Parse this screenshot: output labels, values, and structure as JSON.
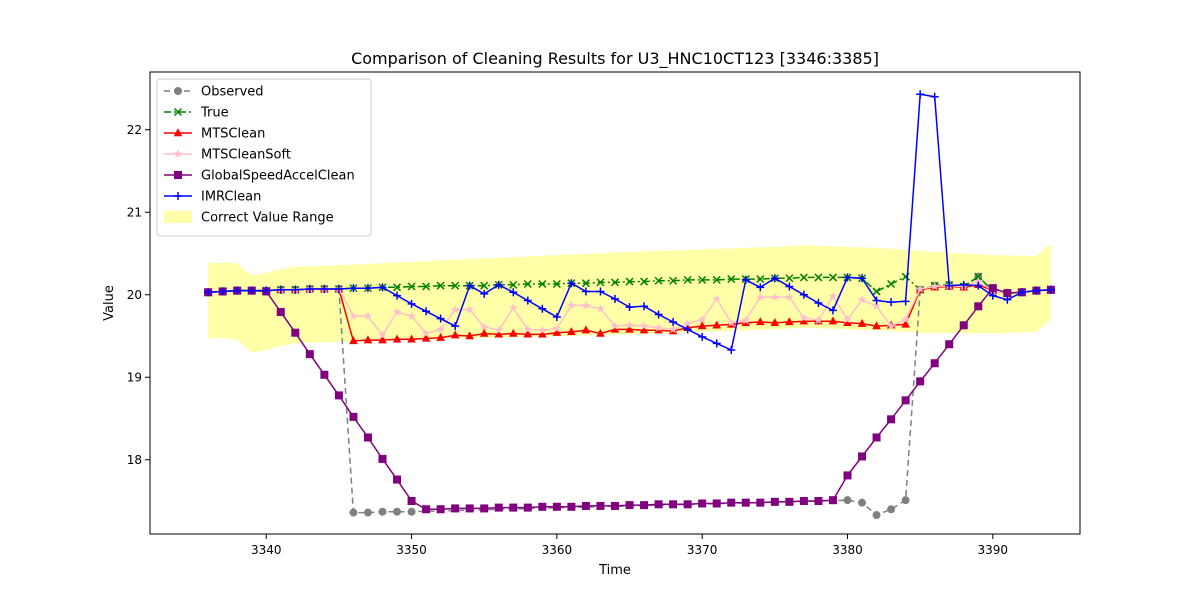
{
  "chart_data": {
    "type": "line",
    "title": "Comparison of Cleaning Results for U3_HNC10CT123 [3346:3385]",
    "xlabel": "Time",
    "ylabel": "Value",
    "xlim": [
      3332,
      3396
    ],
    "ylim": [
      17.1,
      22.7
    ],
    "xticks": [
      3340,
      3350,
      3360,
      3370,
      3380,
      3390
    ],
    "yticks": [
      18,
      19,
      20,
      21,
      22
    ],
    "grid": false,
    "legend_position": "top-left",
    "x": [
      3336,
      3337,
      3338,
      3339,
      3340,
      3341,
      3342,
      3343,
      3344,
      3345,
      3346,
      3347,
      3348,
      3349,
      3350,
      3351,
      3352,
      3353,
      3354,
      3355,
      3356,
      3357,
      3358,
      3359,
      3360,
      3361,
      3362,
      3363,
      3364,
      3365,
      3366,
      3367,
      3368,
      3369,
      3370,
      3371,
      3372,
      3373,
      3374,
      3375,
      3376,
      3377,
      3378,
      3379,
      3380,
      3381,
      3382,
      3383,
      3384,
      3385,
      3386,
      3387,
      3388,
      3389,
      3390,
      3391,
      3392,
      3393,
      3394
    ],
    "band": {
      "name": "Correct Value Range",
      "color": "#ffff99",
      "x": [
        3336,
        3337,
        3338,
        3339,
        3340,
        3341,
        3342,
        3345,
        3350,
        3355,
        3360,
        3365,
        3370,
        3375,
        3377,
        3380,
        3383,
        3385,
        3390,
        3393,
        3394
      ],
      "upper": [
        20.38,
        20.39,
        20.38,
        20.23,
        20.27,
        20.31,
        20.34,
        20.36,
        20.4,
        20.44,
        20.48,
        20.52,
        20.55,
        20.58,
        20.6,
        20.58,
        20.56,
        20.53,
        20.48,
        20.47,
        20.62
      ],
      "lower": [
        19.47,
        19.48,
        19.45,
        19.3,
        19.33,
        19.38,
        19.41,
        19.43,
        19.46,
        19.48,
        19.5,
        19.52,
        19.55,
        19.58,
        19.6,
        19.58,
        19.56,
        19.54,
        19.53,
        19.55,
        19.7
      ]
    },
    "series": [
      {
        "name": "Observed",
        "color": "#808080",
        "marker": "circle",
        "dash": "6,4",
        "values": [
          20.03,
          20.04,
          20.05,
          20.05,
          20.05,
          20.06,
          20.06,
          20.07,
          20.07,
          20.07,
          17.36,
          17.36,
          17.37,
          17.37,
          17.37,
          null,
          null,
          null,
          null,
          null,
          null,
          null,
          null,
          null,
          null,
          null,
          null,
          null,
          null,
          null,
          null,
          null,
          null,
          null,
          null,
          null,
          null,
          null,
          null,
          null,
          null,
          null,
          null,
          null,
          17.51,
          17.48,
          17.33,
          17.4,
          17.51,
          20.06,
          20.11,
          20.12,
          20.1,
          20.22,
          20.05,
          20.02,
          20.03,
          20.05,
          20.06
        ]
      },
      {
        "name": "True",
        "color": "#008000",
        "marker": "x",
        "dash": "7,3,2,3",
        "values": [
          20.03,
          20.04,
          20.05,
          20.05,
          20.05,
          20.06,
          20.06,
          20.07,
          20.07,
          20.07,
          20.08,
          20.08,
          20.09,
          20.09,
          20.1,
          20.1,
          20.11,
          20.11,
          20.11,
          20.11,
          20.12,
          20.12,
          20.13,
          20.13,
          20.13,
          20.14,
          20.14,
          20.15,
          20.15,
          20.16,
          20.16,
          20.17,
          20.17,
          20.18,
          20.18,
          20.18,
          20.19,
          20.19,
          20.19,
          20.2,
          20.2,
          20.21,
          20.21,
          20.21,
          20.21,
          20.2,
          20.04,
          20.13,
          20.22,
          20.06,
          20.11,
          20.12,
          20.1,
          20.22,
          20.05,
          20.02,
          20.03,
          20.05,
          20.06
        ]
      },
      {
        "name": "MTSClean",
        "color": "#ff0000",
        "marker": "triangle",
        "dash": "",
        "values": [
          20.03,
          20.04,
          20.05,
          20.05,
          20.05,
          20.06,
          20.06,
          20.07,
          20.07,
          20.07,
          19.44,
          19.45,
          19.45,
          19.46,
          19.46,
          19.47,
          19.48,
          19.51,
          19.5,
          19.53,
          19.52,
          19.53,
          19.52,
          19.52,
          19.54,
          19.55,
          19.57,
          19.53,
          19.58,
          19.58,
          19.57,
          19.57,
          19.56,
          19.6,
          19.62,
          19.63,
          19.64,
          19.66,
          19.67,
          19.66,
          19.67,
          19.68,
          19.68,
          19.68,
          19.66,
          19.65,
          19.62,
          19.63,
          19.64,
          20.06,
          20.09,
          20.1,
          20.09,
          20.12,
          20.05,
          20.02,
          20.03,
          20.05,
          20.06
        ]
      },
      {
        "name": "MTSCleanSoft",
        "color": "#ffc0cb",
        "marker": "star",
        "dash": "",
        "values": [
          20.03,
          20.04,
          20.05,
          20.05,
          20.05,
          20.06,
          20.06,
          20.07,
          20.07,
          20.07,
          19.74,
          19.74,
          19.51,
          19.79,
          19.74,
          19.53,
          19.58,
          19.82,
          19.82,
          19.61,
          19.57,
          19.84,
          19.58,
          19.57,
          19.59,
          19.87,
          19.87,
          19.83,
          19.62,
          19.63,
          19.62,
          19.6,
          19.58,
          19.65,
          19.7,
          19.95,
          19.66,
          19.69,
          19.97,
          19.97,
          19.97,
          19.72,
          19.69,
          19.98,
          19.7,
          19.94,
          19.86,
          19.62,
          19.7,
          20.07,
          20.1,
          20.11,
          20.1,
          20.16,
          20.05,
          20.02,
          20.03,
          20.05,
          20.06
        ]
      },
      {
        "name": "GlobalSpeedAccelClean",
        "color": "#800080",
        "marker": "square",
        "dash": "",
        "values": [
          20.03,
          20.04,
          20.05,
          20.05,
          20.04,
          19.79,
          19.54,
          19.28,
          19.03,
          18.78,
          18.52,
          18.27,
          18.01,
          17.76,
          17.5,
          17.4,
          17.4,
          17.41,
          17.41,
          17.41,
          17.42,
          17.42,
          17.42,
          17.43,
          17.43,
          17.43,
          17.44,
          17.44,
          17.44,
          17.45,
          17.45,
          17.46,
          17.46,
          17.46,
          17.47,
          17.47,
          17.48,
          17.48,
          17.48,
          17.49,
          17.49,
          17.5,
          17.5,
          17.51,
          17.81,
          18.04,
          18.27,
          18.49,
          18.72,
          18.95,
          19.17,
          19.4,
          19.63,
          19.86,
          20.08,
          20.02,
          20.03,
          20.05,
          20.06
        ]
      },
      {
        "name": "IMRClean",
        "color": "#0000ff",
        "marker": "plus",
        "dash": "",
        "values": [
          20.03,
          20.04,
          20.05,
          20.05,
          20.05,
          20.06,
          20.06,
          20.07,
          20.07,
          20.07,
          20.08,
          20.08,
          20.09,
          19.99,
          19.89,
          19.8,
          19.71,
          19.62,
          20.11,
          20.01,
          20.12,
          20.03,
          19.93,
          19.83,
          19.73,
          20.14,
          20.04,
          20.04,
          19.95,
          19.85,
          19.86,
          19.76,
          19.67,
          19.58,
          19.49,
          19.41,
          19.33,
          20.18,
          20.09,
          20.2,
          20.1,
          20.0,
          19.9,
          19.81,
          20.21,
          20.2,
          19.93,
          19.91,
          19.92,
          22.43,
          22.4,
          20.11,
          20.12,
          20.11,
          19.99,
          19.94,
          20.03,
          20.05,
          20.06
        ]
      }
    ]
  }
}
